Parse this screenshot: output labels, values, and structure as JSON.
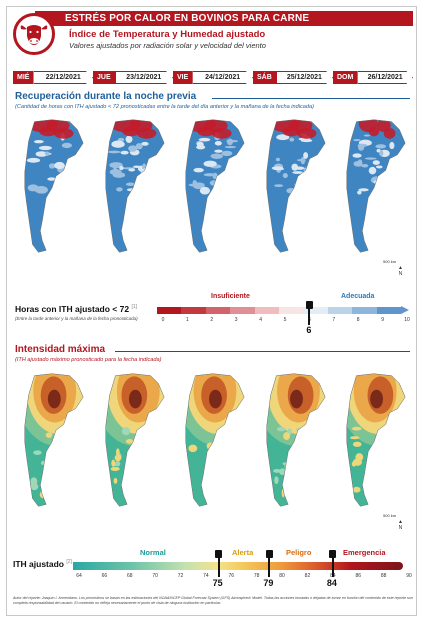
{
  "header": {
    "banner": "ESTRÉS POR CALOR EN BOVINOS PARA CARNE",
    "index_title": "Índice de Temperatura y Humedad ajustado",
    "index_subtitle": "Valores ajustados por radiación solar y velocidad del viento"
  },
  "dates": [
    {
      "day": "MIÉ",
      "date": "22/12/2021"
    },
    {
      "day": "JUE",
      "date": "23/12/2021"
    },
    {
      "day": "VIE",
      "date": "24/12/2021"
    },
    {
      "day": "SÁB",
      "date": "25/12/2021"
    },
    {
      "day": "DOM",
      "date": "26/12/2021"
    }
  ],
  "recovery": {
    "title": "Recuperación durante la noche previa",
    "subtitle": "(Cantidad de horas con ITH ajustado < 72 pronosticadas entre la tarde del día anterior y la mañana de la fecha indicada)",
    "legend_label": "Horas con ITH ajustado < 72",
    "legend_ref": "[1]",
    "legend_note": "(Entre la tarde anterior y la mañana de la fecha pronosticada)",
    "cat_insufficient": "Insuficiente",
    "cat_adequate": "Adecuada",
    "ticks": [
      "0",
      "1",
      "2",
      "3",
      "4",
      "5",
      "6",
      "7",
      "8",
      "9",
      "10"
    ],
    "threshold": "6",
    "threshold_value": 6,
    "colors": {
      "insufficient": "#b3161f",
      "adequate": "#2f78b8"
    }
  },
  "intensity": {
    "title": "Intensidad máxima",
    "subtitle": "(ITH ajustado máximo pronosticado para la fecha indicada)",
    "legend_label": "ITH ajustado",
    "legend_ref": "[2]",
    "cat_normal": "Normal",
    "cat_alert": "Alerta",
    "cat_danger": "Peligro",
    "cat_emergency": "Emergencia",
    "ticks": [
      "64",
      "66",
      "68",
      "70",
      "72",
      "74",
      "76",
      "78",
      "80",
      "82",
      "84",
      "86",
      "88",
      "90"
    ],
    "thresholds": [
      "75",
      "79",
      "84"
    ],
    "threshold_values": [
      75,
      79,
      84
    ]
  },
  "map_extras": {
    "scale": "500 km",
    "north": "N"
  },
  "footer": "Autor del reporte: Joaquín I. Armendano. Los pronósticos se basan en las estimaciones del NOAA/NCEP Global Forecast System (GFS) Atmospheric Model. Todas las acciones tomadas o dejadas de tomar en función del contenido de este reporte son completa responsabilidad del usuario. El contenido no refleja necesariamente el punto de vista de ninguna institución en particular."
}
